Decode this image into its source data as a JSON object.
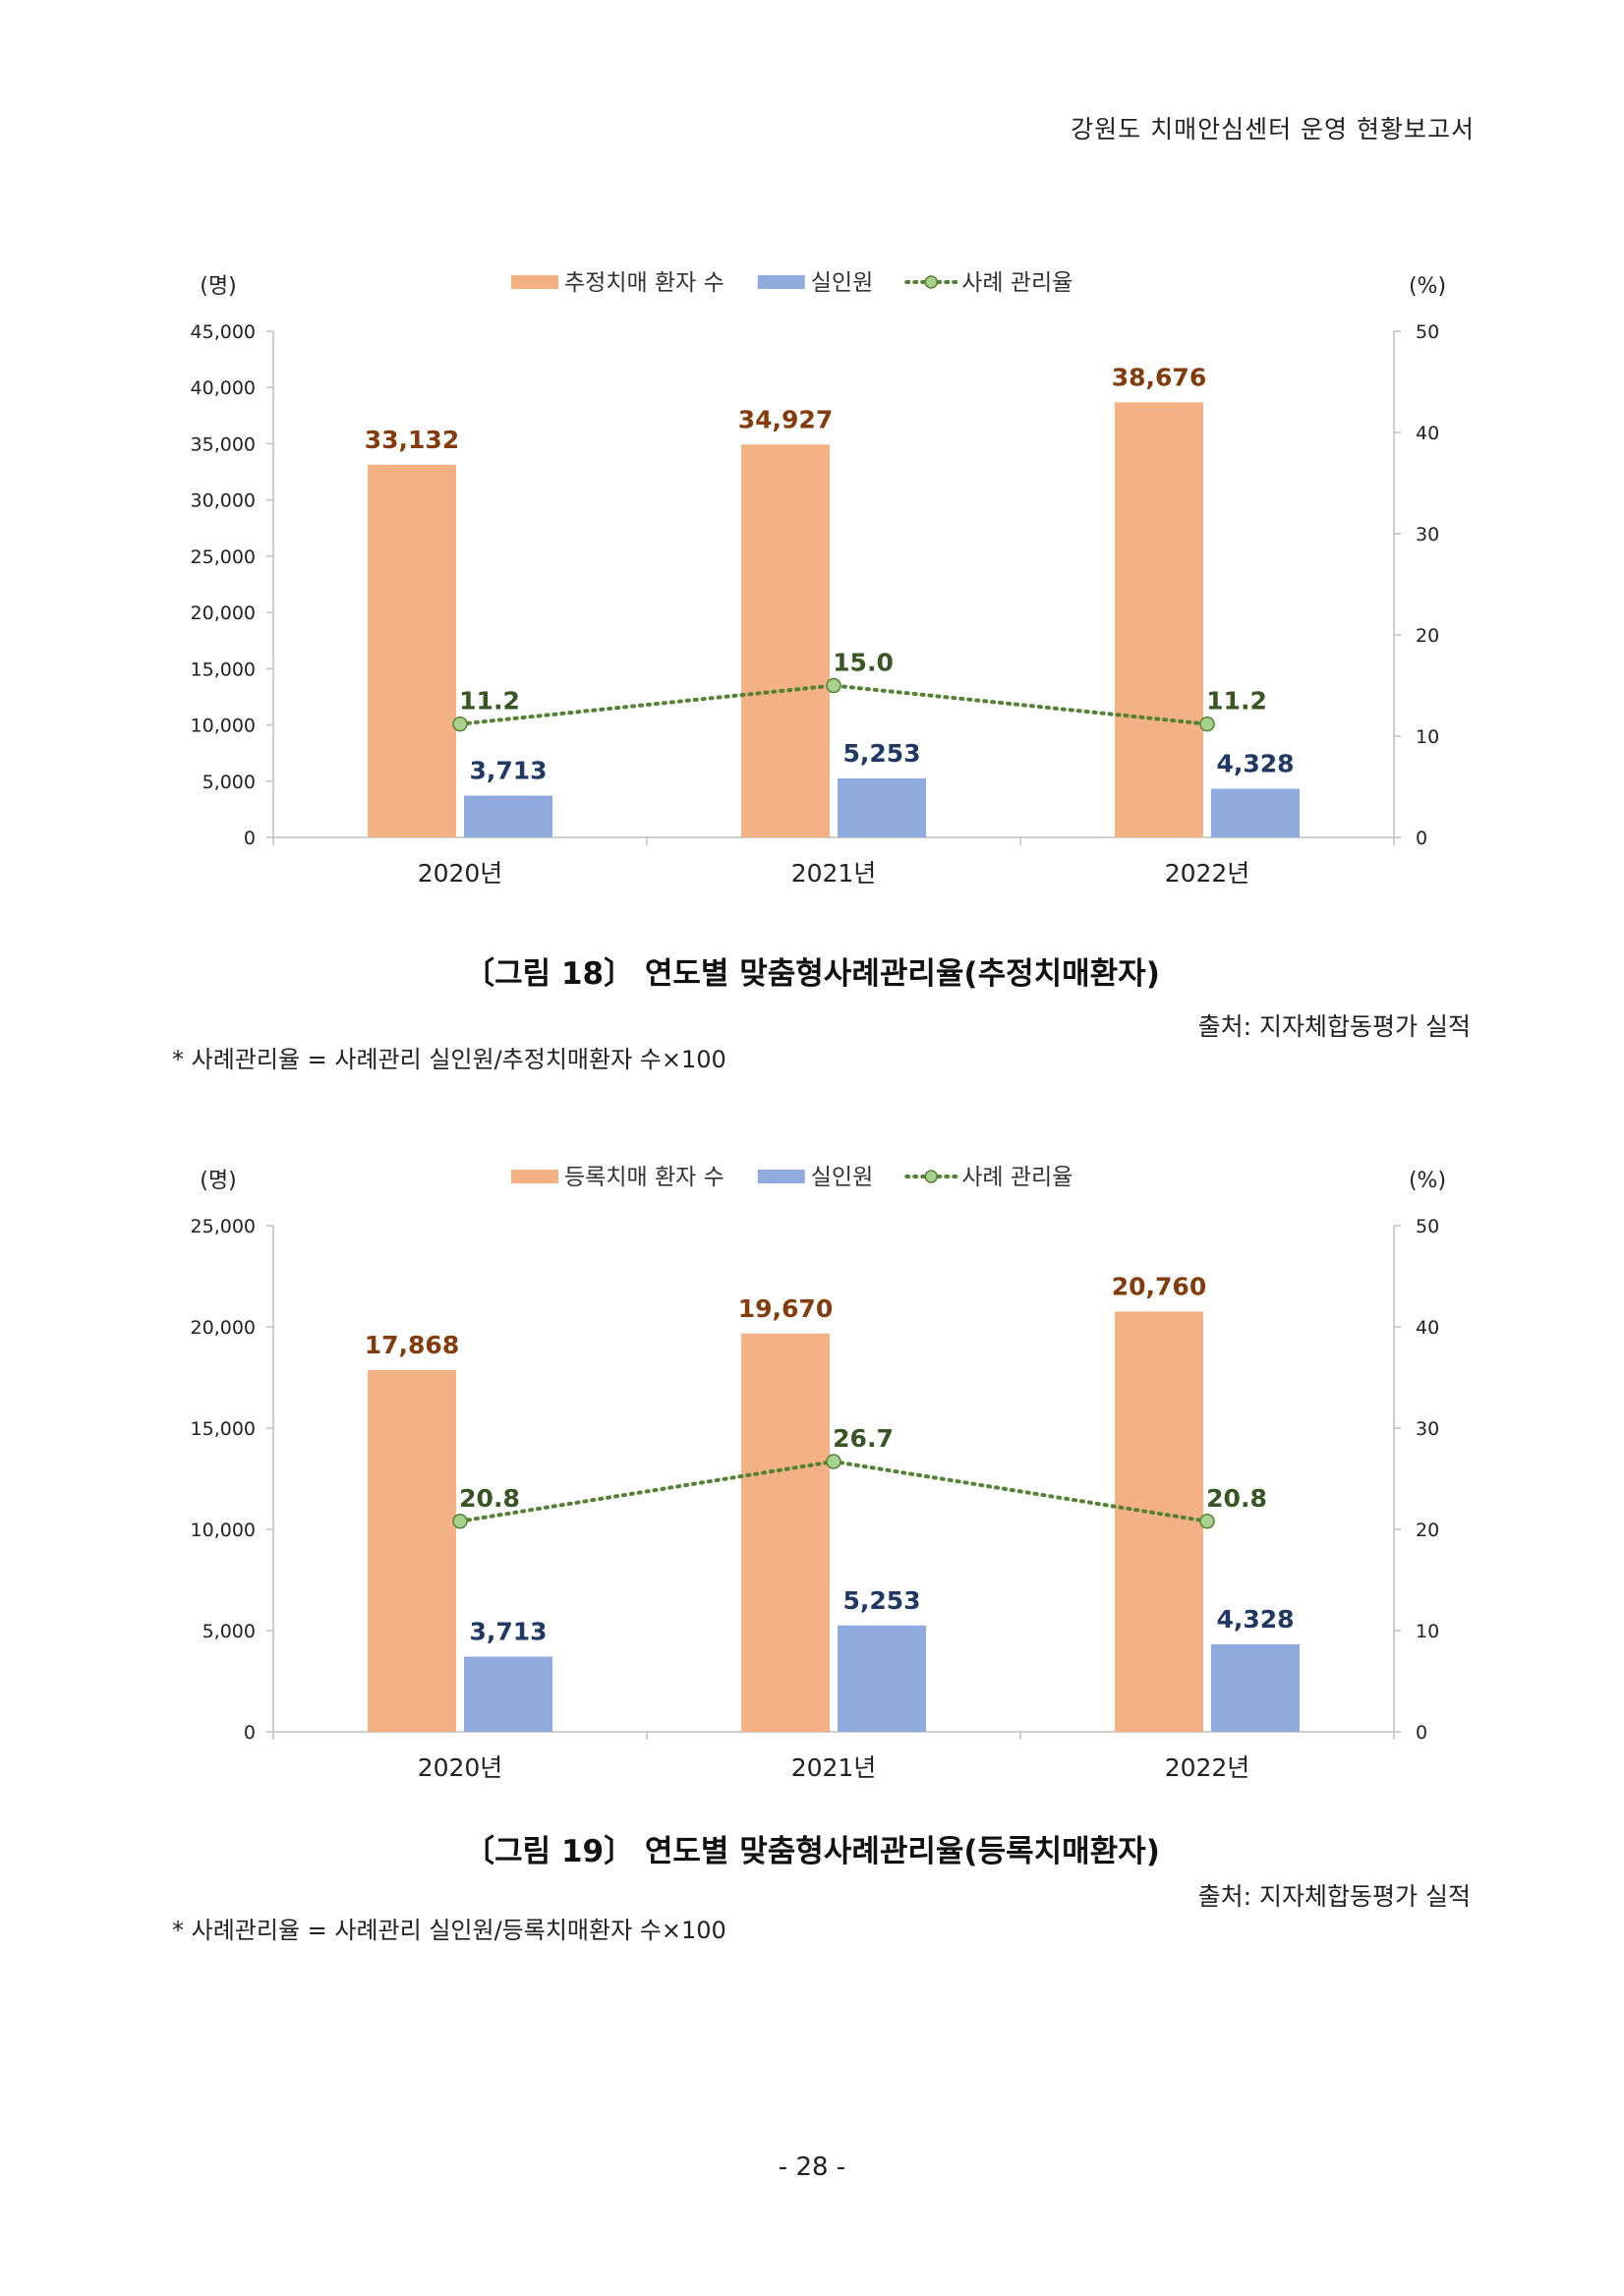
{
  "header": {
    "title": "강원도 치매안심센터 운영 현황보고서"
  },
  "charts": [
    {
      "caption": "〔그림 18〕 연도별 맞춤형사례관리율(추정치매환자)",
      "source": "출처: 지자체합동평가 실적",
      "note": "* 사례관리율 = 사례관리 실인원/추정치매환자 수×100",
      "chart_data": {
        "type": "bar",
        "categories": [
          "2020년",
          "2021년",
          "2022년"
        ],
        "series": [
          {
            "name": "추정치매 환자 수",
            "kind": "bar",
            "axis": "left",
            "color": "#f4b183",
            "label_color": "#843c0c",
            "values": [
              33132,
              34927,
              38676
            ],
            "labels": [
              "33,132",
              "34,927",
              "38,676"
            ]
          },
          {
            "name": "실인원",
            "kind": "bar",
            "axis": "left",
            "color": "#8faadc",
            "label_color": "#1f3864",
            "values": [
              3713,
              5253,
              4328
            ],
            "labels": [
              "3,713",
              "5,253",
              "4,328"
            ]
          },
          {
            "name": "사례 관리율",
            "kind": "line",
            "axis": "right",
            "color": "#548235",
            "marker_color": "#a9d18e",
            "label_color": "#375623",
            "values": [
              11.2,
              15.0,
              11.2
            ],
            "labels": [
              "11.2",
              "15.0",
              "11.2"
            ]
          }
        ],
        "left_axis": {
          "unit": "(명)",
          "ylim": [
            0,
            45000
          ],
          "ticks": [
            0,
            5000,
            10000,
            15000,
            20000,
            25000,
            30000,
            35000,
            40000,
            45000
          ],
          "tick_labels": [
            "0",
            "5,000",
            "10,000",
            "15,000",
            "20,000",
            "25,000",
            "30,000",
            "35,000",
            "40,000",
            "45,000"
          ]
        },
        "right_axis": {
          "unit": "(%)",
          "ylim": [
            0,
            50
          ],
          "ticks": [
            0,
            10,
            20,
            30,
            40,
            50
          ],
          "tick_labels": [
            "0",
            "10",
            "20",
            "30",
            "40",
            "50"
          ]
        },
        "legend_position": "top-center",
        "grid": false
      }
    },
    {
      "caption": "〔그림 19〕 연도별 맞춤형사례관리율(등록치매환자)",
      "source": "출처: 지자체합동평가 실적",
      "note": "* 사례관리율 = 사례관리 실인원/등록치매환자 수×100",
      "chart_data": {
        "type": "bar",
        "categories": [
          "2020년",
          "2021년",
          "2022년"
        ],
        "series": [
          {
            "name": "등록치매 환자 수",
            "kind": "bar",
            "axis": "left",
            "color": "#f4b183",
            "label_color": "#843c0c",
            "values": [
              17868,
              19670,
              20760
            ],
            "labels": [
              "17,868",
              "19,670",
              "20,760"
            ]
          },
          {
            "name": "실인원",
            "kind": "bar",
            "axis": "left",
            "color": "#8faadc",
            "label_color": "#1f3864",
            "values": [
              3713,
              5253,
              4328
            ],
            "labels": [
              "3,713",
              "5,253",
              "4,328"
            ]
          },
          {
            "name": "사례 관리율",
            "kind": "line",
            "axis": "right",
            "color": "#548235",
            "marker_color": "#a9d18e",
            "label_color": "#375623",
            "values": [
              20.8,
              26.7,
              20.8
            ],
            "labels": [
              "20.8",
              "26.7",
              "20.8"
            ]
          }
        ],
        "left_axis": {
          "unit": "(명)",
          "ylim": [
            0,
            25000
          ],
          "ticks": [
            0,
            5000,
            10000,
            15000,
            20000,
            25000
          ],
          "tick_labels": [
            "0",
            "5,000",
            "10,000",
            "15,000",
            "20,000",
            "25,000"
          ]
        },
        "right_axis": {
          "unit": "(%)",
          "ylim": [
            0,
            50
          ],
          "ticks": [
            0,
            10,
            20,
            30,
            40,
            50
          ],
          "tick_labels": [
            "0",
            "10",
            "20",
            "30",
            "40",
            "50"
          ]
        },
        "legend_position": "top-center",
        "grid": false
      }
    }
  ],
  "page_number": "- 28 -"
}
